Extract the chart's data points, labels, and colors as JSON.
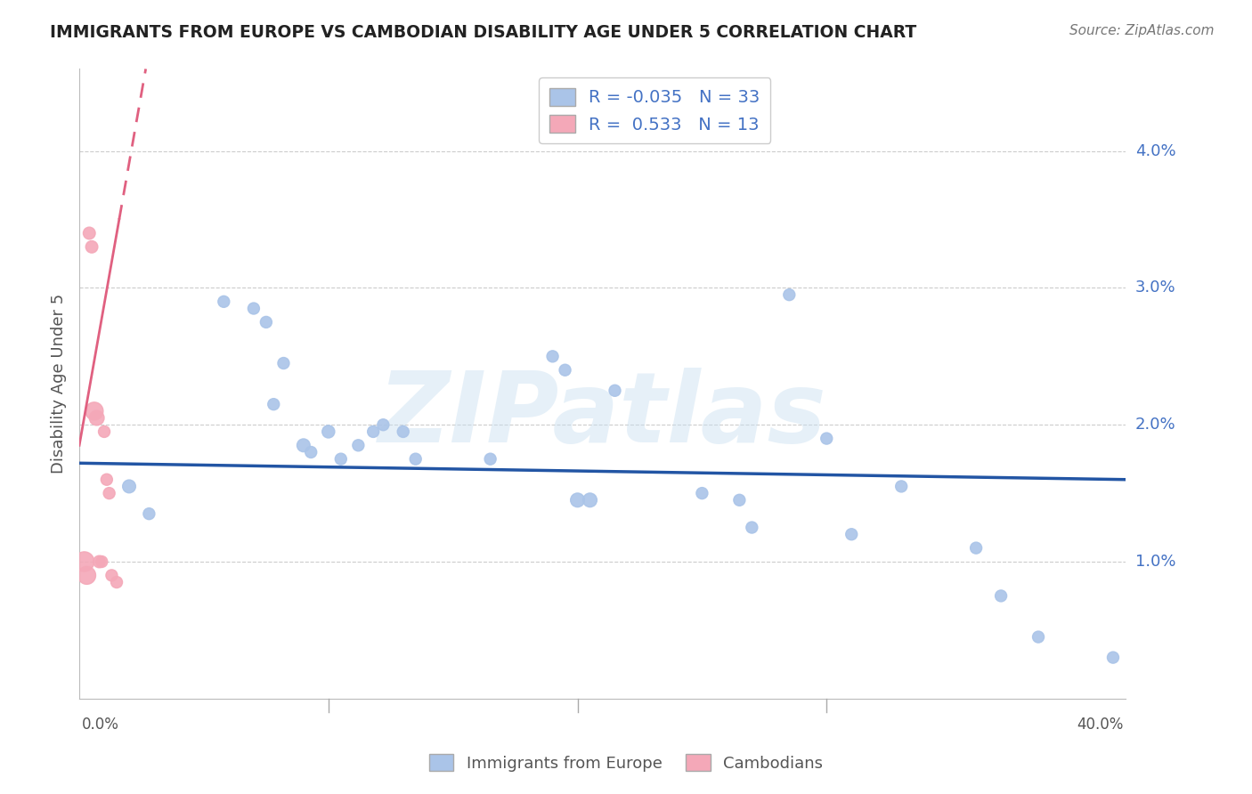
{
  "title": "IMMIGRANTS FROM EUROPE VS CAMBODIAN DISABILITY AGE UNDER 5 CORRELATION CHART",
  "source": "Source: ZipAtlas.com",
  "ylabel": "Disability Age Under 5",
  "xlim": [
    0.0,
    0.42
  ],
  "ylim": [
    0.0,
    0.046
  ],
  "yticks": [
    0.01,
    0.02,
    0.03,
    0.04
  ],
  "ytick_labels": [
    "1.0%",
    "2.0%",
    "3.0%",
    "4.0%"
  ],
  "xticks": [
    0.0,
    0.1,
    0.2,
    0.3,
    0.4
  ],
  "legend_r_europe": "-0.035",
  "legend_n_europe": "33",
  "legend_r_cambodian": "0.533",
  "legend_n_cambodian": "13",
  "europe_color": "#aac4e8",
  "europe_line_color": "#2255a4",
  "cambodian_color": "#f4a8b8",
  "cambodian_line_color": "#e06080",
  "watermark": "ZIPatlas",
  "blue_line_x0": 0.0,
  "blue_line_y0": 0.0172,
  "blue_line_x1": 0.42,
  "blue_line_y1": 0.016,
  "pink_line_solid_x0": 0.0,
  "pink_line_solid_y0": 0.0185,
  "pink_line_solid_x1": 0.016,
  "pink_line_solid_y1": 0.035,
  "pink_line_dashed_x0": 0.0,
  "pink_line_dashed_y0": 0.0185,
  "pink_line_dashed_x1": 0.006,
  "pink_line_dashed_y1": 0.046,
  "blue_scatter_x": [
    0.02,
    0.028,
    0.058,
    0.07,
    0.075,
    0.078,
    0.082,
    0.09,
    0.093,
    0.1,
    0.105,
    0.112,
    0.118,
    0.122,
    0.13,
    0.135,
    0.165,
    0.19,
    0.195,
    0.2,
    0.205,
    0.215,
    0.25,
    0.265,
    0.27,
    0.285,
    0.3,
    0.31,
    0.33,
    0.36,
    0.37,
    0.385,
    0.415
  ],
  "blue_scatter_y": [
    0.0155,
    0.0135,
    0.029,
    0.0285,
    0.0275,
    0.0215,
    0.0245,
    0.0185,
    0.018,
    0.0195,
    0.0175,
    0.0185,
    0.0195,
    0.02,
    0.0195,
    0.0175,
    0.0175,
    0.025,
    0.024,
    0.0145,
    0.0145,
    0.0225,
    0.015,
    0.0145,
    0.0125,
    0.0295,
    0.019,
    0.012,
    0.0155,
    0.011,
    0.0075,
    0.0045,
    0.003
  ],
  "blue_scatter_size": [
    70,
    55,
    55,
    55,
    55,
    55,
    55,
    70,
    55,
    65,
    55,
    55,
    55,
    55,
    55,
    55,
    55,
    55,
    55,
    80,
    80,
    55,
    55,
    55,
    55,
    55,
    55,
    55,
    55,
    55,
    55,
    55,
    55
  ],
  "pink_scatter_x": [
    0.002,
    0.003,
    0.004,
    0.005,
    0.006,
    0.007,
    0.008,
    0.009,
    0.01,
    0.011,
    0.012,
    0.013,
    0.015
  ],
  "pink_scatter_y": [
    0.01,
    0.009,
    0.034,
    0.033,
    0.021,
    0.0205,
    0.01,
    0.01,
    0.0195,
    0.016,
    0.015,
    0.009,
    0.0085
  ],
  "pink_scatter_size": [
    160,
    130,
    60,
    60,
    130,
    90,
    60,
    55,
    55,
    55,
    55,
    55,
    55
  ]
}
